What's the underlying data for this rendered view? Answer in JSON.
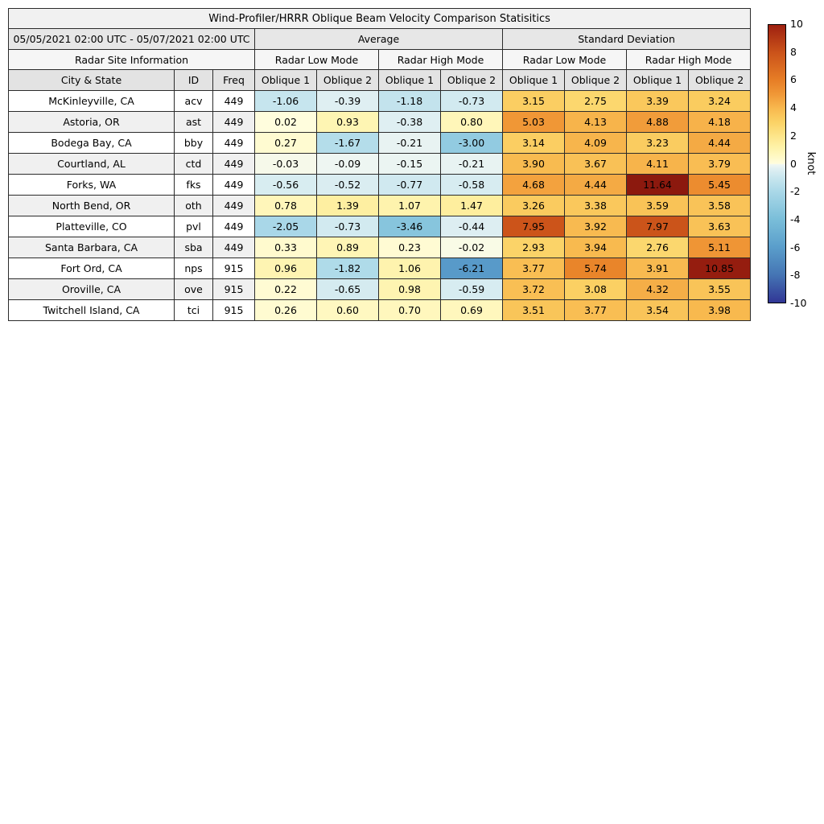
{
  "title": "Wind-Profiler/HRRR Oblique Beam Velocity Comparison Statisitics",
  "header": {
    "date_range": "05/05/2021 02:00 UTC - 05/07/2021 02:00 UTC",
    "group_average": "Average",
    "group_std": "Standard Deviation",
    "site_info": "Radar Site Information",
    "mode_headers": [
      "Radar Low Mode",
      "Radar High Mode",
      "Radar Low Mode",
      "Radar High Mode"
    ],
    "col_headers": [
      "City & State",
      "ID",
      "Freq",
      "Oblique 1",
      "Oblique 2",
      "Oblique 1",
      "Oblique 2",
      "Oblique 1",
      "Oblique 2",
      "Oblique 1",
      "Oblique 2"
    ]
  },
  "chart_data": {
    "type": "table",
    "title": "Wind-Profiler/HRRR Oblique Beam Velocity Comparison Statisitics",
    "date_range": "05/05/2021 02:00 UTC - 05/07/2021 02:00 UTC",
    "column_groups": [
      "Average",
      "Standard Deviation"
    ],
    "mode_groups": [
      "Radar Low Mode",
      "Radar High Mode",
      "Radar Low Mode",
      "Radar High Mode"
    ],
    "columns": [
      "City & State",
      "ID",
      "Freq",
      "Oblique 1",
      "Oblique 2",
      "Oblique 1",
      "Oblique 2",
      "Oblique 1",
      "Oblique 2",
      "Oblique 1",
      "Oblique 2"
    ],
    "rows": [
      {
        "city": "McKinleyville, CA",
        "id": "acv",
        "freq": 449,
        "values": [
          -1.06,
          -0.39,
          -1.18,
          -0.73,
          3.15,
          2.75,
          3.39,
          3.24
        ]
      },
      {
        "city": "Astoria, OR",
        "id": "ast",
        "freq": 449,
        "values": [
          0.02,
          0.93,
          -0.38,
          0.8,
          5.03,
          4.13,
          4.88,
          4.18
        ]
      },
      {
        "city": "Bodega Bay, CA",
        "id": "bby",
        "freq": 449,
        "values": [
          0.27,
          -1.67,
          -0.21,
          -3.0,
          3.14,
          4.09,
          3.23,
          4.44
        ]
      },
      {
        "city": "Courtland, AL",
        "id": "ctd",
        "freq": 449,
        "values": [
          -0.03,
          -0.09,
          -0.15,
          -0.21,
          3.9,
          3.67,
          4.11,
          3.79
        ]
      },
      {
        "city": "Forks, WA",
        "id": "fks",
        "freq": 449,
        "values": [
          -0.56,
          -0.52,
          -0.77,
          -0.58,
          4.68,
          4.44,
          11.64,
          5.45
        ]
      },
      {
        "city": "North Bend, OR",
        "id": "oth",
        "freq": 449,
        "values": [
          0.78,
          1.39,
          1.07,
          1.47,
          3.26,
          3.38,
          3.59,
          3.58
        ]
      },
      {
        "city": "Platteville, CO",
        "id": "pvl",
        "freq": 449,
        "values": [
          -2.05,
          -0.73,
          -3.46,
          -0.44,
          7.95,
          3.92,
          7.97,
          3.63
        ]
      },
      {
        "city": "Santa Barbara, CA",
        "id": "sba",
        "freq": 449,
        "values": [
          0.33,
          0.89,
          0.23,
          -0.02,
          2.93,
          3.94,
          2.76,
          5.11
        ]
      },
      {
        "city": "Fort Ord, CA",
        "id": "nps",
        "freq": 915,
        "values": [
          0.96,
          -1.82,
          1.06,
          -6.21,
          3.77,
          5.74,
          3.91,
          10.85
        ]
      },
      {
        "city": "Oroville, CA",
        "id": "ove",
        "freq": 915,
        "values": [
          0.22,
          -0.65,
          0.98,
          -0.59,
          3.72,
          3.08,
          4.32,
          3.55
        ]
      },
      {
        "city": "Twitchell Island, CA",
        "id": "tci",
        "freq": 915,
        "values": [
          0.26,
          0.6,
          0.7,
          0.69,
          3.51,
          3.77,
          3.54,
          3.98
        ]
      }
    ],
    "colorbar": {
      "label": "knot",
      "min": -10,
      "max": 10,
      "ticks": [
        10,
        8,
        6,
        4,
        2,
        0,
        -2,
        -4,
        -6,
        -8,
        -10
      ]
    },
    "colors": {
      "positive_max": "#9e2010",
      "neutral": "#fffdde",
      "negative_min": "#313695"
    }
  }
}
